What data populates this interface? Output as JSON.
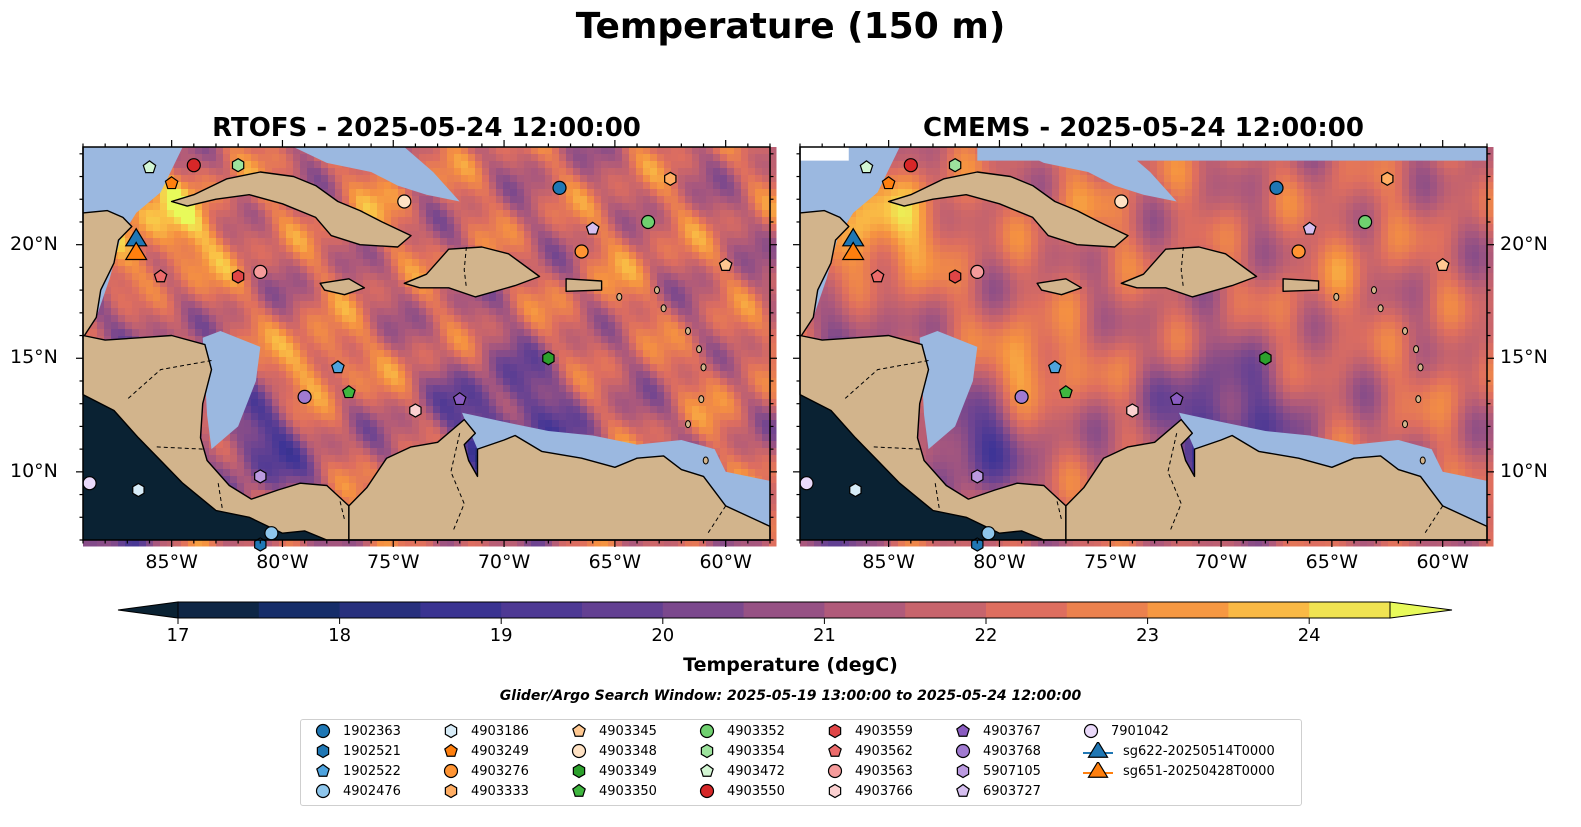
{
  "title": "Temperature (150 m)",
  "panels": [
    {
      "title": "RTOFS - 2025-05-24 12:00:00"
    },
    {
      "title": "CMEMS - 2025-05-24 12:00:00"
    }
  ],
  "map": {
    "lon_range": [
      -89,
      -58
    ],
    "lat_range": [
      7,
      24.3
    ],
    "lon_ticks": [
      "85°W",
      "80°W",
      "75°W",
      "70°W",
      "65°W",
      "60°W"
    ],
    "lat_ticks": [
      "20°N",
      "15°N",
      "10°N"
    ],
    "colors": {
      "ocean_shelf": "#9bb8e0",
      "land": "#d2b48c",
      "deep_dark": "#0a2233"
    }
  },
  "colorbar": {
    "label": "Temperature (degC)",
    "ticks": [
      "17",
      "18",
      "19",
      "20",
      "21",
      "22",
      "23",
      "24"
    ],
    "range": [
      17,
      24.5
    ]
  },
  "search_window": "Glider/Argo Search Window: 2025-05-19 13:00:00 to 2025-05-24 12:00:00",
  "legend": [
    {
      "label": "1902363",
      "marker": "circle",
      "color": "#1f77b4"
    },
    {
      "label": "1902521",
      "marker": "hexagon",
      "color": "#1f77b4"
    },
    {
      "label": "1902522",
      "marker": "pentagon",
      "color": "#4ea3de"
    },
    {
      "label": "4902476",
      "marker": "circle",
      "color": "#8ec6ec"
    },
    {
      "label": "4903186",
      "marker": "hexagon",
      "color": "#d7ecf8"
    },
    {
      "label": "4903249",
      "marker": "pentagon",
      "color": "#ff7f0e"
    },
    {
      "label": "4903276",
      "marker": "circle",
      "color": "#ff9433"
    },
    {
      "label": "4903333",
      "marker": "hexagon",
      "color": "#ffad63"
    },
    {
      "label": "4903345",
      "marker": "pentagon",
      "color": "#ffc891"
    },
    {
      "label": "4903348",
      "marker": "circle",
      "color": "#ffe2c4"
    },
    {
      "label": "4903349",
      "marker": "hexagon",
      "color": "#2ca02c"
    },
    {
      "label": "4903350",
      "marker": "pentagon",
      "color": "#3fb63f"
    },
    {
      "label": "4903352",
      "marker": "circle",
      "color": "#6fd06f"
    },
    {
      "label": "4903354",
      "marker": "hexagon",
      "color": "#9de39d"
    },
    {
      "label": "4903472",
      "marker": "pentagon",
      "color": "#d3f6d3"
    },
    {
      "label": "4903550",
      "marker": "circle",
      "color": "#d62728"
    },
    {
      "label": "4903559",
      "marker": "hexagon",
      "color": "#e04546"
    },
    {
      "label": "4903562",
      "marker": "pentagon",
      "color": "#ec6b6b"
    },
    {
      "label": "4903563",
      "marker": "circle",
      "color": "#f59b9b"
    },
    {
      "label": "4903766",
      "marker": "hexagon",
      "color": "#fbd0d0"
    },
    {
      "label": "4903767",
      "marker": "pentagon",
      "color": "#8a5cc0"
    },
    {
      "label": "4903768",
      "marker": "circle",
      "color": "#a07ad0"
    },
    {
      "label": "5907105",
      "marker": "hexagon",
      "color": "#bb9ae0"
    },
    {
      "label": "6903727",
      "marker": "pentagon",
      "color": "#d6bff0"
    },
    {
      "label": "7901042",
      "marker": "circle",
      "color": "#ead9fa"
    },
    {
      "label": "sg622-20250514T0000",
      "marker": "triangle",
      "color": "#1f77b4"
    },
    {
      "label": "sg651-20250428T0000",
      "marker": "triangle",
      "color": "#ff7f0e"
    }
  ],
  "observations": [
    {
      "id": "1902363",
      "lon": -67.5,
      "lat": 22.5
    },
    {
      "id": "1902521",
      "lon": -81.0,
      "lat": 6.8
    },
    {
      "id": "1902522",
      "lon": -77.5,
      "lat": 14.6
    },
    {
      "id": "4902476",
      "lon": -80.5,
      "lat": 7.3
    },
    {
      "id": "4903186",
      "lon": -86.5,
      "lat": 9.2
    },
    {
      "id": "4903249",
      "lon": -85.0,
      "lat": 22.7
    },
    {
      "id": "4903276",
      "lon": -66.5,
      "lat": 19.7
    },
    {
      "id": "4903333",
      "lon": -62.5,
      "lat": 22.9
    },
    {
      "id": "4903345",
      "lon": -60.0,
      "lat": 19.1
    },
    {
      "id": "4903348",
      "lon": -74.5,
      "lat": 21.9
    },
    {
      "id": "4903349",
      "lon": -68.0,
      "lat": 15.0
    },
    {
      "id": "4903350",
      "lon": -77.0,
      "lat": 13.5
    },
    {
      "id": "4903352",
      "lon": -63.5,
      "lat": 21.0
    },
    {
      "id": "4903354",
      "lon": -82.0,
      "lat": 23.5
    },
    {
      "id": "4903472",
      "lon": -86.0,
      "lat": 23.4
    },
    {
      "id": "4903550",
      "lon": -84.0,
      "lat": 23.5
    },
    {
      "id": "4903559",
      "lon": -82.0,
      "lat": 18.6
    },
    {
      "id": "4903562",
      "lon": -85.5,
      "lat": 18.6
    },
    {
      "id": "4903563",
      "lon": -81.0,
      "lat": 18.8
    },
    {
      "id": "4903766",
      "lon": -74.0,
      "lat": 12.7
    },
    {
      "id": "4903767",
      "lon": -72.0,
      "lat": 13.2
    },
    {
      "id": "4903768",
      "lon": -79.0,
      "lat": 13.3
    },
    {
      "id": "5907105",
      "lon": -81.0,
      "lat": 9.8
    },
    {
      "id": "6903727",
      "lon": -66.0,
      "lat": 20.7
    },
    {
      "id": "7901042",
      "lon": -88.7,
      "lat": 9.5
    }
  ],
  "gliders": [
    {
      "id": "sg622-20250514T0000",
      "lon": -86.6,
      "lat": 20.2
    },
    {
      "id": "sg651-20250428T0000",
      "lon": -86.6,
      "lat": 19.6
    }
  ]
}
